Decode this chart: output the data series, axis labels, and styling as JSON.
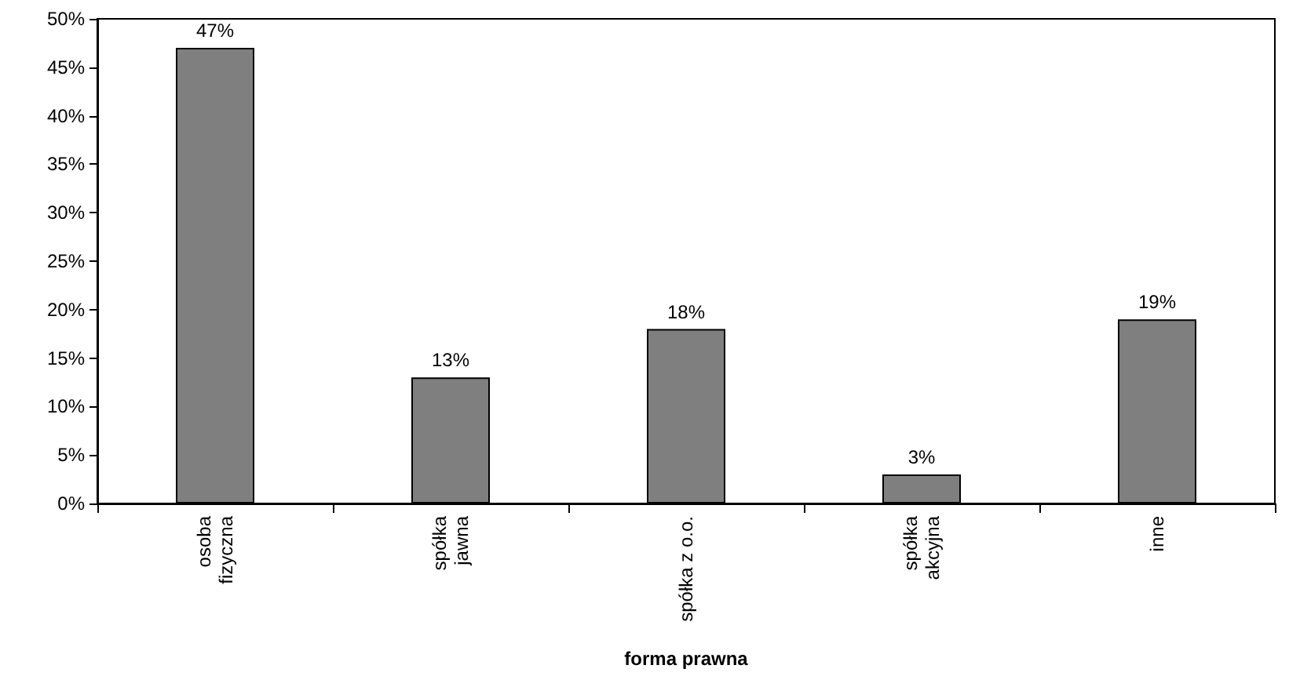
{
  "chart_data": {
    "type": "bar",
    "xlabel": "forma prawna",
    "categories": [
      "osoba fizyczna",
      "spółka jawna",
      "spółka z o.o.",
      "spółka akcyjna",
      "inne"
    ],
    "values": [
      47,
      13,
      18,
      3,
      19
    ],
    "value_labels": [
      "47%",
      "13%",
      "18%",
      "3%",
      "19%"
    ],
    "color": "#7f7f7f",
    "ylim": [
      0,
      50
    ],
    "yticks": [
      {
        "value": 0,
        "label": "0%"
      },
      {
        "value": 5,
        "label": "5%"
      },
      {
        "value": 10,
        "label": "10%"
      },
      {
        "value": 15,
        "label": "15%"
      },
      {
        "value": 20,
        "label": "20%"
      },
      {
        "value": 25,
        "label": "25%"
      },
      {
        "value": 30,
        "label": "30%"
      },
      {
        "value": 35,
        "label": "35%"
      },
      {
        "value": 40,
        "label": "40%"
      },
      {
        "value": 45,
        "label": "45%"
      },
      {
        "value": 50,
        "label": "50%"
      }
    ],
    "grid": false
  }
}
